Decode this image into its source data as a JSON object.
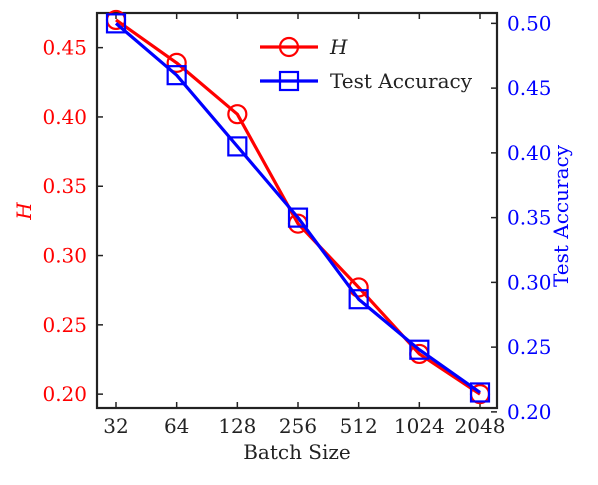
{
  "chart_data": {
    "type": "line",
    "categories": [
      "32",
      "64",
      "128",
      "256",
      "512",
      "1024",
      "2048"
    ],
    "xlabel": "Batch Size",
    "ylabel_left": "H",
    "ylabel_right": "Test Accuracy",
    "ylim_left": [
      0.19,
      0.475
    ],
    "ylim_right": [
      0.203,
      0.508
    ],
    "yticks_left": [
      "0.20",
      "0.25",
      "0.30",
      "0.35",
      "0.40",
      "0.45"
    ],
    "yticks_right": [
      "0.20",
      "0.25",
      "0.30",
      "0.35",
      "0.40",
      "0.45",
      "0.50"
    ],
    "grid": false,
    "legend_position": "top-right",
    "series": [
      {
        "name": "H",
        "axis": "left",
        "marker": "circle",
        "color": "#ff0000",
        "values": [
          0.47,
          0.439,
          0.402,
          0.323,
          0.277,
          0.229,
          0.2
        ]
      },
      {
        "name": "Test Accuracy",
        "axis": "right",
        "marker": "square",
        "color": "#0000ff",
        "values": [
          0.5,
          0.46,
          0.405,
          0.35,
          0.287,
          0.248,
          0.215
        ]
      }
    ]
  },
  "colors": {
    "left_axis": "#ff0000",
    "right_axis": "#0000ff",
    "frame": "#222222"
  }
}
